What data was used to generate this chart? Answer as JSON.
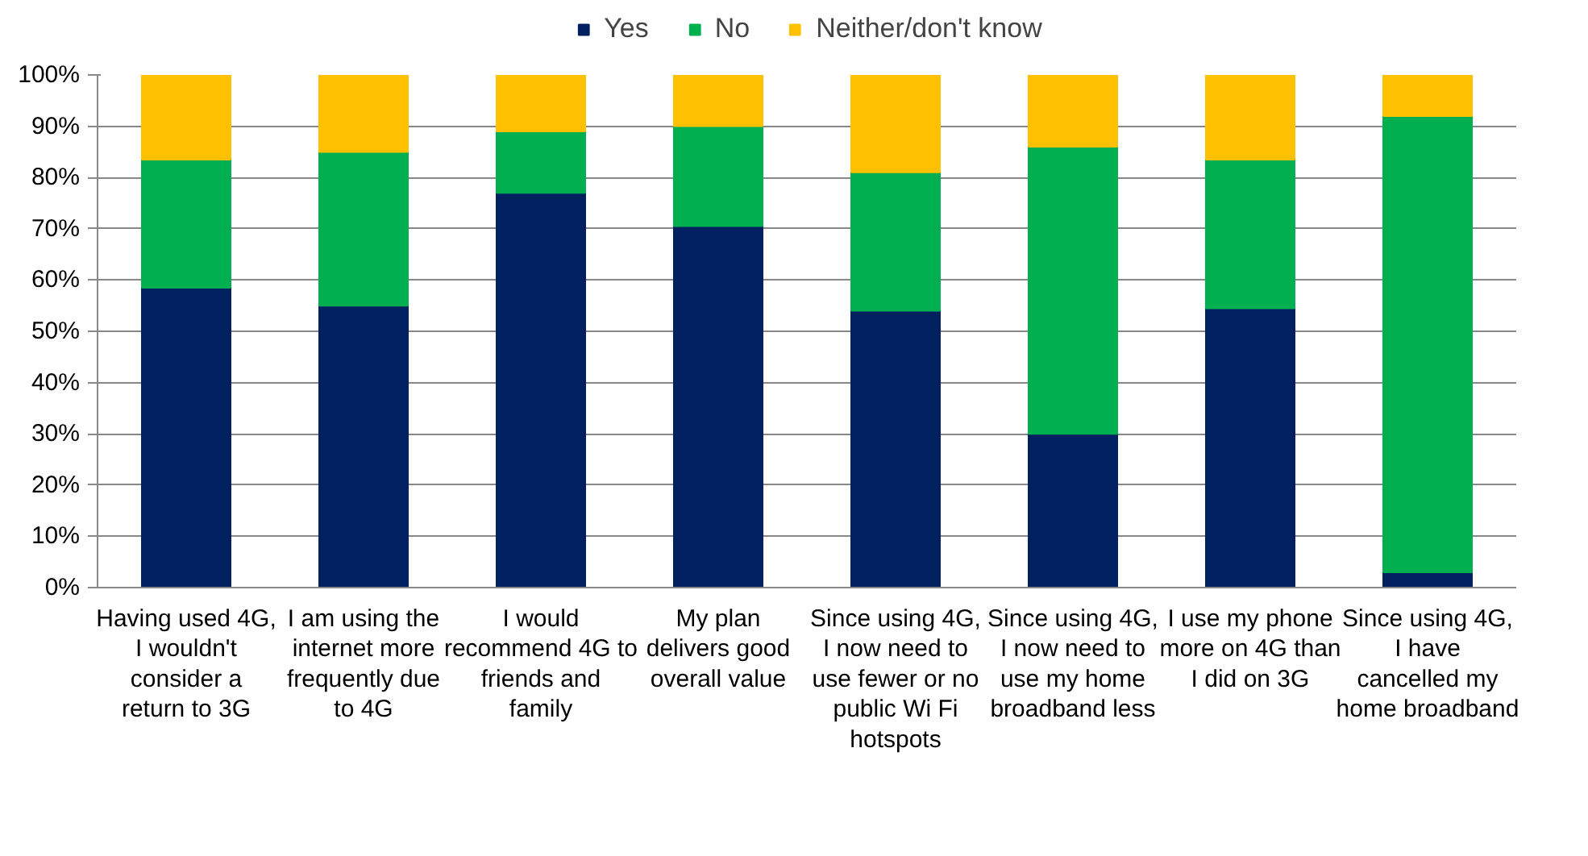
{
  "chart_data": {
    "type": "bar",
    "stacked": true,
    "categories": [
      "Having used 4G, I wouldn't consider a return to 3G",
      "I am using the internet more frequently due to 4G",
      "I would recommend 4G to friends and family",
      "My plan delivers good overall value",
      "Since using 4G, I now need to use fewer or no public Wi Fi hotspots",
      "Since using 4G, I now need to use my home broadband less",
      "I use my phone more on 4G than I did on 3G",
      "Since using 4G, I have cancelled my home broadband"
    ],
    "series": [
      {
        "name": "Yes",
        "color": "#002060",
        "values": [
          58.5,
          55,
          77,
          70.5,
          54,
          30,
          54.5,
          3
        ]
      },
      {
        "name": "No",
        "color": "#00b050",
        "values": [
          25,
          30,
          12,
          19.5,
          27,
          56,
          29,
          89
        ]
      },
      {
        "name": "Neither/don't know",
        "color": "#ffc000",
        "values": [
          16.5,
          15,
          11,
          10,
          19,
          14,
          16.5,
          8
        ]
      }
    ],
    "ylim": [
      0,
      100
    ],
    "yticks": [
      {
        "value": 0,
        "label": "0%"
      },
      {
        "value": 10,
        "label": "10%"
      },
      {
        "value": 20,
        "label": "20%"
      },
      {
        "value": 30,
        "label": "30%"
      },
      {
        "value": 40,
        "label": "40%"
      },
      {
        "value": 50,
        "label": "50%"
      },
      {
        "value": 60,
        "label": "60%"
      },
      {
        "value": 70,
        "label": "70%"
      },
      {
        "value": 80,
        "label": "80%"
      },
      {
        "value": 90,
        "label": "90%"
      },
      {
        "value": 100,
        "label": "100%"
      }
    ],
    "grid": "y",
    "legend": "top"
  }
}
